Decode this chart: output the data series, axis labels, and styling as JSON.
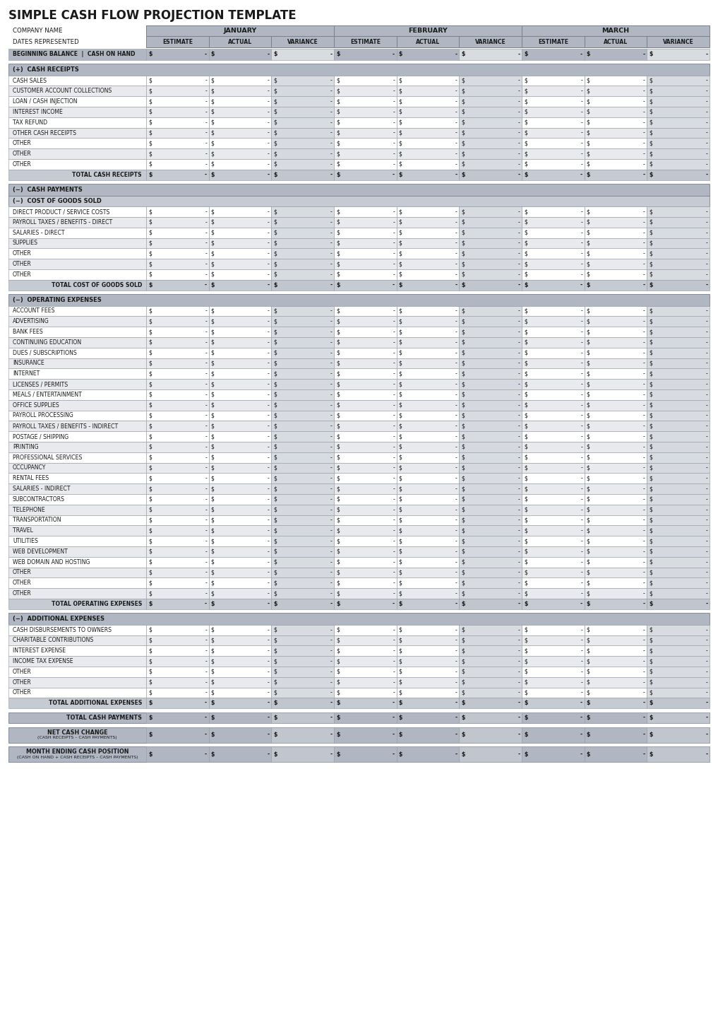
{
  "title": "SIMPLE CASH FLOW PROJECTION TEMPLATE",
  "months": [
    "JANUARY",
    "FEBRUARY",
    "MARCH"
  ],
  "col_headers": [
    "ESTIMATE",
    "ACTUAL",
    "VARIANCE"
  ],
  "beg_balance": {
    "label": "BEGINNING BALANCE  |  CASH ON HAND",
    "bold": true
  },
  "sections": [
    {
      "header": "(+)  CASH RECEIPTS",
      "subheader": null,
      "rows": [
        {
          "label": "CASH SALES"
        },
        {
          "label": "CUSTOMER ACCOUNT COLLECTIONS"
        },
        {
          "label": "LOAN / CASH INJECTION"
        },
        {
          "label": "INTEREST INCOME"
        },
        {
          "label": "TAX REFUND"
        },
        {
          "label": "OTHER CASH RECEIPTS"
        },
        {
          "label": "OTHER"
        },
        {
          "label": "OTHER"
        },
        {
          "label": "OTHER"
        },
        {
          "label": "TOTAL CASH RECEIPTS",
          "total": true
        }
      ]
    },
    {
      "header": "(−)  CASH PAYMENTS",
      "subheader": "(−)  COST OF GOODS SOLD",
      "rows": [
        {
          "label": "DIRECT PRODUCT / SERVICE COSTS"
        },
        {
          "label": "PAYROLL TAXES / BENEFITS - DIRECT"
        },
        {
          "label": "SALARIES - DIRECT"
        },
        {
          "label": "SUPPLIES"
        },
        {
          "label": "OTHER"
        },
        {
          "label": "OTHER"
        },
        {
          "label": "OTHER"
        },
        {
          "label": "TOTAL COST OF GOODS SOLD",
          "total": true
        }
      ]
    },
    {
      "header": "(−)  OPERATING EXPENSES",
      "subheader": null,
      "rows": [
        {
          "label": "ACCOUNT FEES"
        },
        {
          "label": "ADVERTISING"
        },
        {
          "label": "BANK FEES"
        },
        {
          "label": "CONTINUING EDUCATION"
        },
        {
          "label": "DUES / SUBSCRIPTIONS"
        },
        {
          "label": "INSURANCE"
        },
        {
          "label": "INTERNET"
        },
        {
          "label": "LICENSES / PERMITS"
        },
        {
          "label": "MEALS / ENTERTAINMENT"
        },
        {
          "label": "OFFICE SUPPLIES"
        },
        {
          "label": "PAYROLL PROCESSING"
        },
        {
          "label": "PAYROLL TAXES / BENEFITS - INDIRECT"
        },
        {
          "label": "POSTAGE / SHIPPING"
        },
        {
          "label": "PRINTING"
        },
        {
          "label": "PROFESSIONAL SERVICES"
        },
        {
          "label": "OCCUPANCY"
        },
        {
          "label": "RENTAL FEES"
        },
        {
          "label": "SALARIES - INDIRECT"
        },
        {
          "label": "SUBCONTRACTORS"
        },
        {
          "label": "TELEPHONE"
        },
        {
          "label": "TRANSPORTATION"
        },
        {
          "label": "TRAVEL"
        },
        {
          "label": "UTILITIES"
        },
        {
          "label": "WEB DEVELOPMENT"
        },
        {
          "label": "WEB DOMAIN AND HOSTING"
        },
        {
          "label": "OTHER"
        },
        {
          "label": "OTHER"
        },
        {
          "label": "OTHER"
        },
        {
          "label": "TOTAL OPERATING EXPENSES",
          "total": true
        }
      ]
    },
    {
      "header": "(−)  ADDITIONAL EXPENSES",
      "subheader": null,
      "rows": [
        {
          "label": "CASH DISBURSEMENTS TO OWNERS"
        },
        {
          "label": "CHARITABLE CONTRIBUTIONS"
        },
        {
          "label": "INTEREST EXPENSE"
        },
        {
          "label": "INCOME TAX EXPENSE"
        },
        {
          "label": "OTHER"
        },
        {
          "label": "OTHER"
        },
        {
          "label": "OTHER"
        },
        {
          "label": "TOTAL ADDITIONAL EXPENSES",
          "total": true
        }
      ]
    }
  ],
  "bottom_rows": [
    {
      "label": "TOTAL CASH PAYMENTS",
      "sub": null
    },
    {
      "label": "NET CASH CHANGE",
      "sub": "(CASH RECEIPTS – CASH PAYMENTS)"
    },
    {
      "label": "MONTH ENDING CASH POSITION",
      "sub": "(CASH ON HAND + CASH RECEIPTS – CASH PAYMENTS)"
    }
  ],
  "colors": {
    "header_dark": "#b0b7c2",
    "header_medium": "#c5cad3",
    "row_white": "#ffffff",
    "row_alt": "#e8eaed",
    "total_bg": "#c5cad3",
    "border_outer": "#8a9099",
    "border_inner": "#adb3bb",
    "text": "#1a1a1a",
    "variance_bg_dark": "#c0c5ce",
    "variance_bg_light": "#d5d8de"
  }
}
